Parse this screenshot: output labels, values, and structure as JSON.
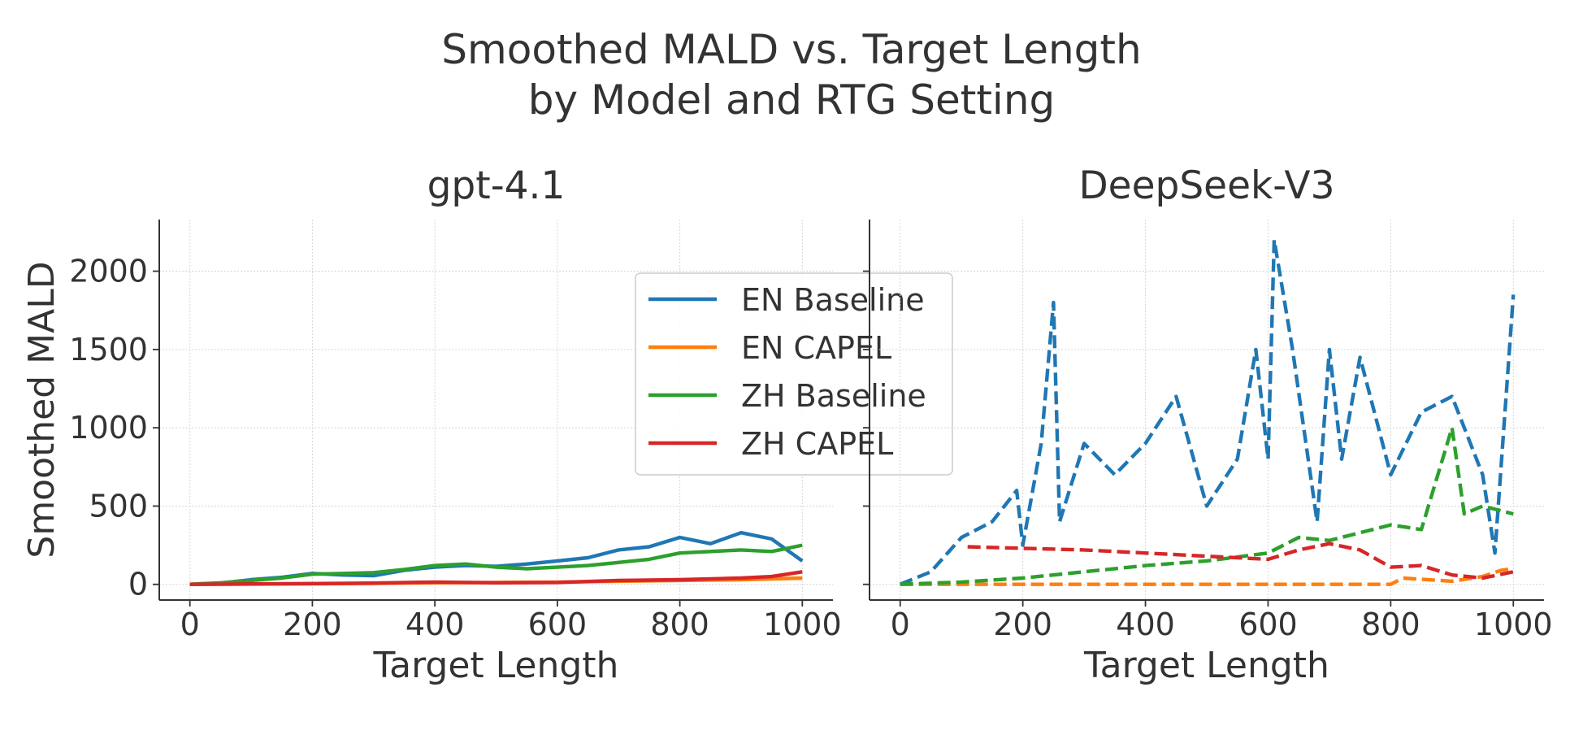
{
  "figure": {
    "title_line1": "Smoothed MALD vs. Target Length",
    "title_line2": "by Model and RTG Setting"
  },
  "chart_data": [
    {
      "type": "line",
      "title": "gpt-4.1",
      "xlabel": "Target Length",
      "ylabel": "Smoothed MALD",
      "xlim": [
        -50,
        1050
      ],
      "ylim": [
        -100,
        2330
      ],
      "xticks": [
        0,
        200,
        400,
        600,
        800,
        1000
      ],
      "yticks": [
        0,
        500,
        1000,
        1500,
        2000
      ],
      "grid": true,
      "legend": {
        "location": "upper right of left panel",
        "entries": [
          "EN Baseline",
          "EN CAPEL",
          "ZH Baseline",
          "ZH CAPEL"
        ]
      },
      "series": [
        {
          "name": "EN Baseline",
          "color": "#1f77b4",
          "dash": "solid",
          "x": [
            0,
            50,
            100,
            150,
            200,
            250,
            300,
            350,
            400,
            450,
            500,
            550,
            600,
            650,
            700,
            750,
            800,
            850,
            900,
            950,
            1000
          ],
          "y": [
            0,
            8,
            30,
            45,
            70,
            60,
            55,
            90,
            110,
            120,
            115,
            130,
            150,
            170,
            220,
            240,
            300,
            260,
            330,
            290,
            150
          ]
        },
        {
          "name": "EN CAPEL",
          "color": "#ff7f0e",
          "dash": "solid",
          "x": [
            0,
            100,
            200,
            300,
            400,
            500,
            600,
            700,
            800,
            900,
            1000
          ],
          "y": [
            0,
            2,
            4,
            6,
            10,
            12,
            15,
            20,
            25,
            30,
            40
          ]
        },
        {
          "name": "ZH Baseline",
          "color": "#2ca02c",
          "dash": "solid",
          "x": [
            0,
            50,
            100,
            150,
            200,
            250,
            300,
            350,
            400,
            450,
            500,
            550,
            600,
            650,
            700,
            750,
            800,
            850,
            900,
            950,
            1000
          ],
          "y": [
            0,
            10,
            25,
            40,
            65,
            70,
            75,
            95,
            120,
            130,
            110,
            100,
            110,
            120,
            140,
            160,
            200,
            210,
            220,
            210,
            250
          ]
        },
        {
          "name": "ZH CAPEL",
          "color": "#d62728",
          "dash": "solid",
          "x": [
            0,
            100,
            200,
            300,
            400,
            500,
            600,
            700,
            800,
            900,
            950,
            1000
          ],
          "y": [
            0,
            3,
            5,
            8,
            15,
            10,
            12,
            25,
            30,
            40,
            50,
            80
          ]
        }
      ]
    },
    {
      "type": "line",
      "title": "DeepSeek-V3",
      "xlabel": "Target Length",
      "ylabel": "",
      "xlim": [
        -50,
        1050
      ],
      "ylim": [
        -100,
        2330
      ],
      "xticks": [
        0,
        200,
        400,
        600,
        800,
        1000
      ],
      "yticks": [
        0,
        500,
        1000,
        1500,
        2000
      ],
      "grid": true,
      "series": [
        {
          "name": "EN Baseline",
          "color": "#1f77b4",
          "dash": "dashed",
          "x": [
            0,
            50,
            100,
            150,
            190,
            200,
            230,
            250,
            260,
            300,
            350,
            400,
            450,
            500,
            550,
            580,
            600,
            610,
            640,
            680,
            700,
            720,
            750,
            800,
            850,
            900,
            950,
            970,
            1000
          ],
          "y": [
            0,
            80,
            300,
            400,
            600,
            250,
            900,
            1800,
            400,
            900,
            700,
            900,
            1200,
            500,
            800,
            1500,
            800,
            2200,
            1500,
            400,
            1500,
            800,
            1450,
            700,
            1100,
            1200,
            700,
            200,
            1850
          ]
        },
        {
          "name": "EN CAPEL",
          "color": "#ff7f0e",
          "dash": "dashed",
          "x": [
            0,
            350,
            400,
            800,
            820,
            900,
            950,
            980,
            1000
          ],
          "y": [
            0,
            0,
            0,
            0,
            40,
            20,
            50,
            90,
            100
          ]
        },
        {
          "name": "ZH Baseline",
          "color": "#2ca02c",
          "dash": "dashed",
          "x": [
            0,
            100,
            200,
            300,
            400,
            500,
            600,
            650,
            700,
            750,
            800,
            850,
            900,
            920,
            950,
            1000
          ],
          "y": [
            0,
            15,
            40,
            80,
            120,
            150,
            200,
            300,
            280,
            330,
            380,
            350,
            1000,
            450,
            500,
            450
          ]
        },
        {
          "name": "ZH CAPEL",
          "color": "#d62728",
          "dash": "dashed",
          "x": [
            110,
            200,
            300,
            400,
            500,
            600,
            650,
            700,
            750,
            800,
            850,
            900,
            950,
            1000
          ],
          "y": [
            240,
            230,
            220,
            200,
            180,
            160,
            220,
            260,
            220,
            110,
            120,
            60,
            40,
            80
          ]
        }
      ]
    }
  ]
}
